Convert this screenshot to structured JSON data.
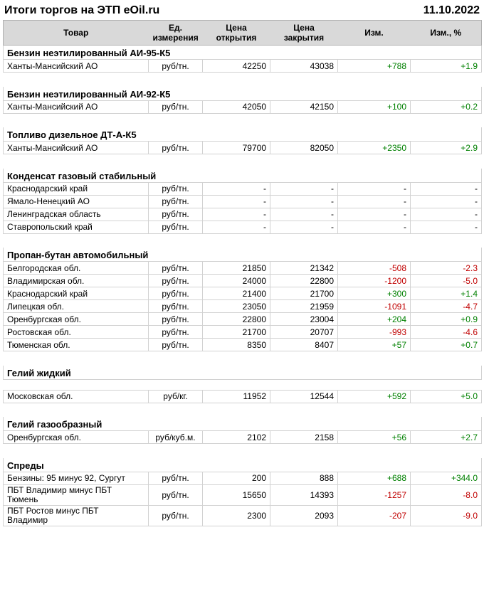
{
  "header": {
    "title": "Итоги торгов на ЭТП eOil.ru",
    "date": "11.10.2022"
  },
  "table": {
    "columns": [
      "Товар",
      "Ед. измерения",
      "Цена открытия",
      "Цена закрытия",
      "Изм.",
      "Изм., %"
    ],
    "colors": {
      "positive": "#008000",
      "negative": "#c00000",
      "header_bg": "#d9d9d9",
      "border": "#d2d2d2"
    },
    "sections": [
      {
        "title": "Бензин неэтилированный АИ-95-К5",
        "rows": [
          {
            "product": "Ханты-Мансийский АО",
            "unit": "руб/тн.",
            "open": "42250",
            "close": "43038",
            "change": "+788",
            "change_pct": "+1.9",
            "trend": "up"
          }
        ]
      },
      {
        "title": "Бензин неэтилированный АИ-92-К5",
        "rows": [
          {
            "product": "Ханты-Мансийский АО",
            "unit": "руб/тн.",
            "open": "42050",
            "close": "42150",
            "change": "+100",
            "change_pct": "+0.2",
            "trend": "up"
          }
        ]
      },
      {
        "title": "Топливо дизельное ДТ-А-К5",
        "rows": [
          {
            "product": "Ханты-Мансийский АО",
            "unit": "руб/тн.",
            "open": "79700",
            "close": "82050",
            "change": "+2350",
            "change_pct": "+2.9",
            "trend": "up"
          }
        ]
      },
      {
        "title": "Конденсат газовый стабильный",
        "rows": [
          {
            "product": "Краснодарский край",
            "unit": "руб/тн.",
            "open": "-",
            "close": "-",
            "change": "-",
            "change_pct": "-",
            "trend": "none"
          },
          {
            "product": "Ямало-Ненецкий АО",
            "unit": "руб/тн.",
            "open": "-",
            "close": "-",
            "change": "-",
            "change_pct": "-",
            "trend": "none"
          },
          {
            "product": "Ленинградская область",
            "unit": "руб/тн.",
            "open": "-",
            "close": "-",
            "change": "-",
            "change_pct": "-",
            "trend": "none"
          },
          {
            "product": "Ставропольский край",
            "unit": "руб/тн.",
            "open": "-",
            "close": "-",
            "change": "-",
            "change_pct": "-",
            "trend": "none"
          }
        ]
      },
      {
        "title": "Пропан-бутан автомобильный",
        "rows": [
          {
            "product": "Белгородская обл.",
            "unit": "руб/тн.",
            "open": "21850",
            "close": "21342",
            "change": "-508",
            "change_pct": "-2.3",
            "trend": "down"
          },
          {
            "product": "Владимирская обл.",
            "unit": "руб/тн.",
            "open": "24000",
            "close": "22800",
            "change": "-1200",
            "change_pct": "-5.0",
            "trend": "down"
          },
          {
            "product": "Краснодарский край",
            "unit": "руб/тн.",
            "open": "21400",
            "close": "21700",
            "change": "+300",
            "change_pct": "+1.4",
            "trend": "up"
          },
          {
            "product": "Липецкая обл.",
            "unit": "руб/тн.",
            "open": "23050",
            "close": "21959",
            "change": "-1091",
            "change_pct": "-4.7",
            "trend": "down"
          },
          {
            "product": "Оренбургская обл.",
            "unit": "руб/тн.",
            "open": "22800",
            "close": "23004",
            "change": "+204",
            "change_pct": "+0.9",
            "trend": "up"
          },
          {
            "product": "Ростовская обл.",
            "unit": "руб/тн.",
            "open": "21700",
            "close": "20707",
            "change": "-993",
            "change_pct": "-4.6",
            "trend": "down"
          },
          {
            "product": "Тюменская обл.",
            "unit": "руб/тн.",
            "open": "8350",
            "close": "8407",
            "change": "+57",
            "change_pct": "+0.7",
            "trend": "up"
          }
        ]
      },
      {
        "title": "Гелий жидкий",
        "gap_after_title": true,
        "rows": [
          {
            "product": "Московская обл.",
            "unit": "руб/кг.",
            "open": "11952",
            "close": "12544",
            "change": "+592",
            "change_pct": "+5.0",
            "trend": "up"
          }
        ]
      },
      {
        "title": "Гелий газообразный",
        "rows": [
          {
            "product": "Оренбургская обл.",
            "unit": "руб/куб.м.",
            "open": "2102",
            "close": "2158",
            "change": "+56",
            "change_pct": "+2.7",
            "trend": "up"
          }
        ]
      },
      {
        "title": "Спреды",
        "rows": [
          {
            "product": "Бензины: 95 минус 92, Сургут",
            "unit": "руб/тн.",
            "open": "200",
            "close": "888",
            "change": "+688",
            "change_pct": "+344.0",
            "trend": "up"
          },
          {
            "product": "ПБТ Владимир минус ПБТ\nТюмень",
            "unit": "руб/тн.",
            "open": "15650",
            "close": "14393",
            "change": "-1257",
            "change_pct": "-8.0",
            "trend": "down",
            "tall": true
          },
          {
            "product": "ПБТ Ростов минус ПБТ\nВладимир",
            "unit": "руб/тн.",
            "open": "2300",
            "close": "2093",
            "change": "-207",
            "change_pct": "-9.0",
            "trend": "down",
            "tall": true
          }
        ]
      }
    ]
  }
}
